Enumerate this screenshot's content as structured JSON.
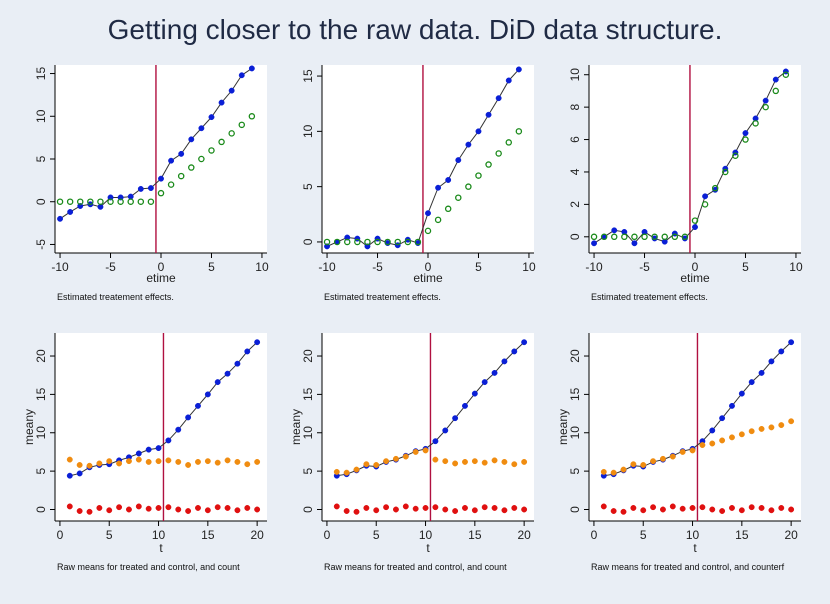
{
  "title": "Getting closer to the raw data.  DiD data structure.",
  "colors": {
    "treated": "#0a1fd6",
    "control": "#1a8a1a",
    "counterfactual": "#f08c10",
    "residual": "#e01010",
    "event_line": "#b01040",
    "line": "#333333"
  },
  "chart_data": [
    {
      "type": "scatter",
      "xlabel": "etime",
      "ylabel": "",
      "caption": "Estimated treatement effects.",
      "xlim": [
        -10.5,
        10.5
      ],
      "ylim": [
        -6,
        16
      ],
      "xticks": [
        -10,
        -5,
        0,
        5,
        10
      ],
      "yticks": [
        -5,
        0,
        5,
        10,
        15
      ],
      "vline": -0.5,
      "series": [
        {
          "x": [
            -10,
            -9,
            -8,
            -7,
            -6,
            -5,
            -4,
            -3,
            -2,
            -1,
            0,
            1,
            2,
            3,
            4,
            5,
            6,
            7,
            8,
            9
          ],
          "y": [
            -2,
            -1.2,
            -0.5,
            -0.3,
            -0.6,
            0.5,
            0.5,
            0.6,
            1.5,
            1.6,
            2.7,
            4.8,
            5.6,
            7.3,
            8.6,
            9.9,
            11.6,
            13,
            14.8,
            15.6
          ],
          "color": "treated",
          "marker": "filled",
          "line": true
        },
        {
          "x": [
            -10,
            -9,
            -8,
            -7,
            -6,
            -5,
            -4,
            -3,
            -2,
            -1,
            0,
            1,
            2,
            3,
            4,
            5,
            6,
            7,
            8,
            9
          ],
          "y": [
            0,
            0,
            0,
            0,
            0,
            0,
            0,
            0,
            0,
            0,
            1,
            2,
            3,
            4,
            5,
            6,
            7,
            8,
            9,
            10
          ],
          "color": "control",
          "marker": "hollow",
          "line": false
        }
      ]
    },
    {
      "type": "scatter",
      "xlabel": "etime",
      "ylabel": "",
      "caption": "Estimated treatement effects.",
      "xlim": [
        -10.5,
        10.5
      ],
      "ylim": [
        -1,
        16
      ],
      "xticks": [
        -10,
        -5,
        0,
        5,
        10
      ],
      "yticks": [
        0,
        5,
        10,
        15
      ],
      "vline": -0.5,
      "series": [
        {
          "x": [
            -10,
            -9,
            -8,
            -7,
            -6,
            -5,
            -4,
            -3,
            -2,
            -1,
            0,
            1,
            2,
            3,
            4,
            5,
            6,
            7,
            8,
            9
          ],
          "y": [
            -0.4,
            0,
            0.4,
            0.3,
            -0.4,
            0.3,
            -0.1,
            -0.3,
            0.2,
            -0.1,
            2.6,
            4.9,
            5.6,
            7.4,
            8.8,
            10,
            11.5,
            13,
            14.6,
            15.6
          ],
          "color": "treated",
          "marker": "filled",
          "line": true
        },
        {
          "x": [
            -10,
            -9,
            -8,
            -7,
            -6,
            -5,
            -4,
            -3,
            -2,
            -1,
            0,
            1,
            2,
            3,
            4,
            5,
            6,
            7,
            8,
            9
          ],
          "y": [
            0,
            0,
            0,
            0,
            0,
            0,
            0,
            0,
            0,
            0,
            1,
            2,
            3,
            4,
            5,
            6,
            7,
            8,
            9,
            10
          ],
          "color": "control",
          "marker": "hollow",
          "line": false
        }
      ]
    },
    {
      "type": "scatter",
      "xlabel": "etime",
      "ylabel": "",
      "caption": "Estimated treatement effects.",
      "xlim": [
        -10.5,
        10.5
      ],
      "ylim": [
        -1,
        10.6
      ],
      "xticks": [
        -10,
        -5,
        0,
        5,
        10
      ],
      "yticks": [
        0,
        2,
        4,
        6,
        8,
        10
      ],
      "vline": -0.5,
      "series": [
        {
          "x": [
            -10,
            -9,
            -8,
            -7,
            -6,
            -5,
            -4,
            -3,
            -2,
            -1,
            0,
            1,
            2,
            3,
            4,
            5,
            6,
            7,
            8,
            9
          ],
          "y": [
            -0.4,
            0,
            0.4,
            0.3,
            -0.4,
            0.3,
            -0.1,
            -0.3,
            0.2,
            -0.1,
            0.6,
            2.5,
            2.9,
            4.2,
            5.2,
            6.4,
            7.3,
            8.4,
            9.7,
            10.2
          ],
          "color": "treated",
          "marker": "filled",
          "line": true
        },
        {
          "x": [
            -10,
            -9,
            -8,
            -7,
            -6,
            -5,
            -4,
            -3,
            -2,
            -1,
            0,
            1,
            2,
            3,
            4,
            5,
            6,
            7,
            8,
            9
          ],
          "y": [
            0,
            0,
            0,
            0,
            0,
            0,
            0,
            0,
            0,
            0,
            1,
            2,
            3,
            4,
            5,
            6,
            7,
            8,
            9,
            10
          ],
          "color": "control",
          "marker": "hollow",
          "line": false
        }
      ]
    },
    {
      "type": "scatter",
      "xlabel": "t",
      "ylabel": "meany",
      "caption": "Raw means for treated and control, and count",
      "xlim": [
        -0.5,
        21
      ],
      "ylim": [
        -1.5,
        23
      ],
      "xticks": [
        0,
        5,
        10,
        15,
        20
      ],
      "yticks": [
        0,
        5,
        10,
        15,
        20
      ],
      "vline": 10.5,
      "series": [
        {
          "x": [
            1,
            2,
            3,
            4,
            5,
            6,
            7,
            8,
            9,
            10,
            11,
            12,
            13,
            14,
            15,
            16,
            17,
            18,
            19,
            20
          ],
          "y": [
            4.4,
            4.7,
            5.5,
            5.8,
            5.9,
            6.4,
            6.8,
            7.3,
            7.8,
            8,
            9,
            10.4,
            12,
            13.5,
            15,
            16.6,
            17.7,
            19,
            20.6,
            21.8
          ],
          "color": "treated",
          "marker": "filled",
          "line": true
        },
        {
          "x": [
            1,
            2,
            3,
            4,
            5,
            6,
            7,
            8,
            9,
            10,
            11,
            12,
            13,
            14,
            15,
            16,
            17,
            18,
            19,
            20
          ],
          "y": [
            6.5,
            5.8,
            5.7,
            6,
            6.3,
            6,
            6.3,
            6.5,
            6.2,
            6.3,
            6.4,
            6.2,
            5.8,
            6.2,
            6.3,
            6.1,
            6.4,
            6.2,
            5.9,
            6.2
          ],
          "color": "counterfactual",
          "marker": "filled",
          "line": false
        },
        {
          "x": [
            1,
            2,
            3,
            4,
            5,
            6,
            7,
            8,
            9,
            10,
            11,
            12,
            13,
            14,
            15,
            16,
            17,
            18,
            19,
            20
          ],
          "y": [
            0.4,
            -0.2,
            -0.3,
            0.2,
            -0.1,
            0.3,
            0,
            0.4,
            0.1,
            0.2,
            0.3,
            0,
            -0.2,
            0.2,
            -0.1,
            0.3,
            0.2,
            -0.1,
            0.2,
            0
          ],
          "color": "residual",
          "marker": "filled",
          "line": false
        }
      ]
    },
    {
      "type": "scatter",
      "xlabel": "t",
      "ylabel": "meany",
      "caption": "Raw means for treated and control, and count",
      "xlim": [
        -0.5,
        21
      ],
      "ylim": [
        -1.5,
        23
      ],
      "xticks": [
        0,
        5,
        10,
        15,
        20
      ],
      "yticks": [
        0,
        5,
        10,
        15,
        20
      ],
      "vline": 10.5,
      "series": [
        {
          "x": [
            1,
            2,
            3,
            4,
            5,
            6,
            7,
            8,
            9,
            10,
            11,
            12,
            13,
            14,
            15,
            16,
            17,
            18,
            19,
            20
          ],
          "y": [
            4.4,
            4.6,
            5.1,
            5.7,
            5.6,
            6.2,
            6.5,
            7,
            7.6,
            7.9,
            8.9,
            10.3,
            11.9,
            13.5,
            15.1,
            16.6,
            17.8,
            19.3,
            20.6,
            21.8
          ],
          "color": "treated",
          "marker": "filled",
          "line": true
        },
        {
          "x": [
            1,
            2,
            3,
            4,
            5,
            6,
            7,
            8,
            9,
            10,
            11,
            12,
            13,
            14,
            15,
            16,
            17,
            18,
            19,
            20
          ],
          "y": [
            4.9,
            4.8,
            5.2,
            5.9,
            5.8,
            6.3,
            6.6,
            6.9,
            7.5,
            7.7,
            6.5,
            6.3,
            6,
            6.2,
            6.3,
            6.1,
            6.4,
            6.2,
            5.9,
            6.2
          ],
          "color": "counterfactual",
          "marker": "filled",
          "line": false
        },
        {
          "x": [
            1,
            2,
            3,
            4,
            5,
            6,
            7,
            8,
            9,
            10,
            11,
            12,
            13,
            14,
            15,
            16,
            17,
            18,
            19,
            20
          ],
          "y": [
            0.4,
            -0.2,
            -0.3,
            0.2,
            -0.1,
            0.3,
            0,
            0.4,
            0.1,
            0.2,
            0.3,
            0,
            -0.2,
            0.2,
            -0.1,
            0.3,
            0.2,
            -0.1,
            0.2,
            0
          ],
          "color": "residual",
          "marker": "filled",
          "line": false
        }
      ]
    },
    {
      "type": "scatter",
      "xlabel": "t",
      "ylabel": "meany",
      "caption": "Raw means for treated and control, and counterf",
      "xlim": [
        -0.5,
        21
      ],
      "ylim": [
        -1.5,
        23
      ],
      "xticks": [
        0,
        5,
        10,
        15,
        20
      ],
      "yticks": [
        0,
        5,
        10,
        15,
        20
      ],
      "vline": 10.5,
      "series": [
        {
          "x": [
            1,
            2,
            3,
            4,
            5,
            6,
            7,
            8,
            9,
            10,
            11,
            12,
            13,
            14,
            15,
            16,
            17,
            18,
            19,
            20
          ],
          "y": [
            4.4,
            4.6,
            5.1,
            5.7,
            5.6,
            6.2,
            6.5,
            7,
            7.6,
            7.9,
            8.9,
            10.3,
            11.9,
            13.5,
            15.1,
            16.6,
            17.8,
            19.3,
            20.6,
            21.8
          ],
          "color": "treated",
          "marker": "filled",
          "line": true
        },
        {
          "x": [
            1,
            2,
            3,
            4,
            5,
            6,
            7,
            8,
            9,
            10,
            11,
            12,
            13,
            14,
            15,
            16,
            17,
            18,
            19,
            20
          ],
          "y": [
            4.9,
            4.8,
            5.2,
            5.9,
            5.8,
            6.3,
            6.6,
            6.9,
            7.5,
            7.7,
            8.4,
            8.6,
            9,
            9.4,
            9.8,
            10.2,
            10.5,
            10.7,
            11,
            11.5
          ],
          "color": "counterfactual",
          "marker": "filled",
          "line": false
        },
        {
          "x": [
            1,
            2,
            3,
            4,
            5,
            6,
            7,
            8,
            9,
            10,
            11,
            12,
            13,
            14,
            15,
            16,
            17,
            18,
            19,
            20
          ],
          "y": [
            0.4,
            -0.2,
            -0.3,
            0.2,
            -0.1,
            0.3,
            0,
            0.4,
            0.1,
            0.2,
            0.3,
            0,
            -0.2,
            0.2,
            -0.1,
            0.3,
            0.2,
            -0.1,
            0.2,
            0
          ],
          "color": "residual",
          "marker": "filled",
          "line": false
        }
      ]
    }
  ]
}
